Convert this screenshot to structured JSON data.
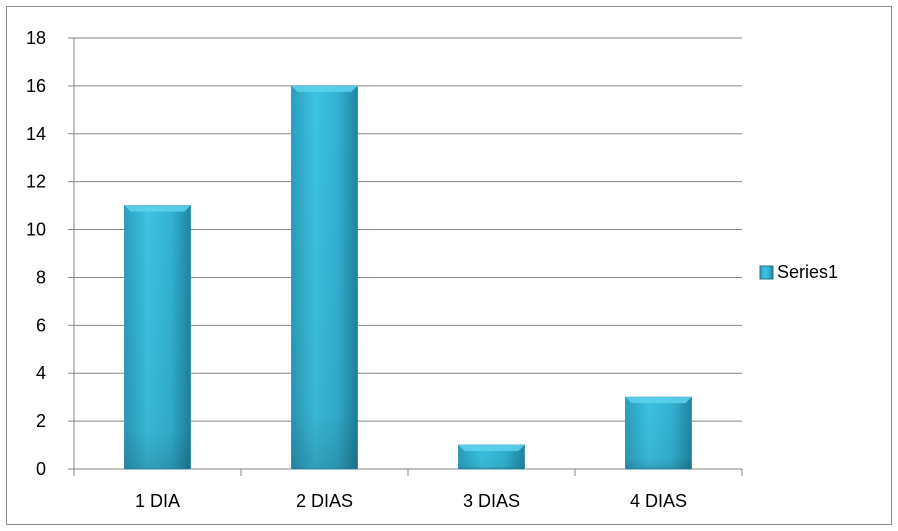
{
  "chart_data": {
    "type": "bar",
    "title": "",
    "xlabel": "",
    "ylabel": "",
    "categories": [
      "1 DIA",
      "2 DIAS",
      "3 DIAS",
      "4 DIAS"
    ],
    "series": [
      {
        "name": "Series1",
        "values": [
          11,
          16,
          1,
          3
        ],
        "color": "#31b4d6"
      }
    ],
    "ylim": [
      0,
      18
    ],
    "yticks": [
      0,
      2,
      4,
      6,
      8,
      10,
      12,
      14,
      16,
      18
    ],
    "grid": true,
    "legend": "right"
  }
}
